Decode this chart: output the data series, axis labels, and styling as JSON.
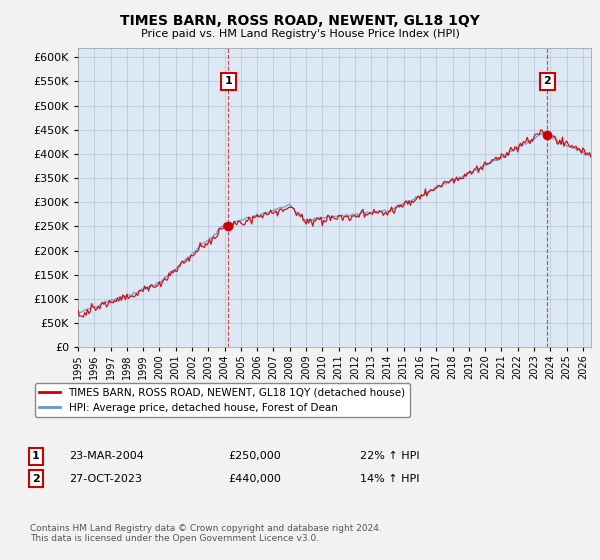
{
  "title": "TIMES BARN, ROSS ROAD, NEWENT, GL18 1QY",
  "subtitle": "Price paid vs. HM Land Registry's House Price Index (HPI)",
  "ylim": [
    0,
    620000
  ],
  "yticks": [
    0,
    50000,
    100000,
    150000,
    200000,
    250000,
    300000,
    350000,
    400000,
    450000,
    500000,
    550000,
    600000
  ],
  "xlim_start": 1995.0,
  "xlim_end": 2026.5,
  "bg_color": "#f2f2f2",
  "plot_bg_color": "#dce9f5",
  "grid_color": "#b0c4d8",
  "red_color": "#cc0000",
  "blue_color": "#6699cc",
  "transaction1_year": 2004.23,
  "transaction1_price": 250000,
  "transaction2_year": 2023.82,
  "transaction2_price": 440000,
  "legend_line1": "TIMES BARN, ROSS ROAD, NEWENT, GL18 1QY (detached house)",
  "legend_line2": "HPI: Average price, detached house, Forest of Dean",
  "note1_num": "1",
  "note1_date": "23-MAR-2004",
  "note1_price": "£250,000",
  "note1_pct": "22% ↑ HPI",
  "note2_num": "2",
  "note2_date": "27-OCT-2023",
  "note2_price": "£440,000",
  "note2_pct": "14% ↑ HPI",
  "footer": "Contains HM Land Registry data © Crown copyright and database right 2024.\nThis data is licensed under the Open Government Licence v3.0."
}
